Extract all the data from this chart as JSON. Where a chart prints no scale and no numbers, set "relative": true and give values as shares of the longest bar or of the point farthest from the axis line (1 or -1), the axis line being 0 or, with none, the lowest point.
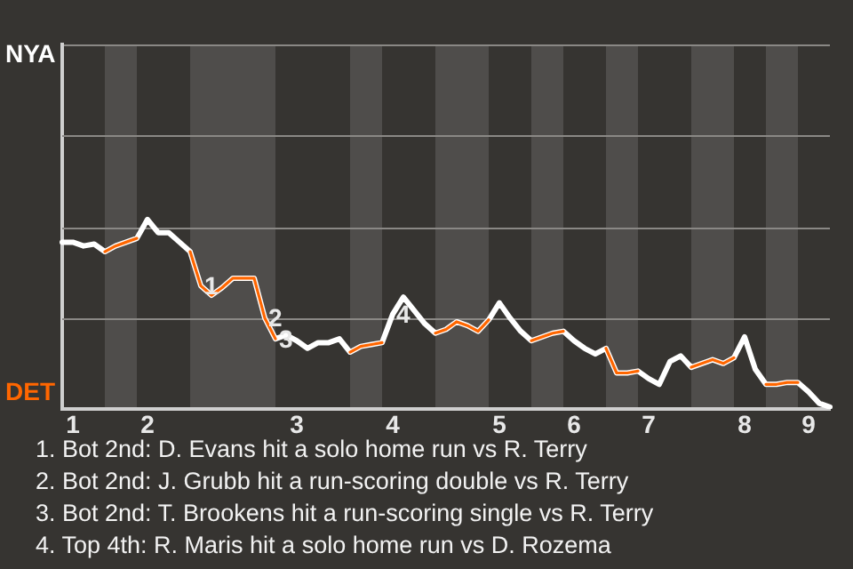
{
  "chart_data": {
    "type": "line",
    "relative": true,
    "categories": [
      null,
      "1",
      null,
      null,
      null,
      null,
      null,
      null,
      "2",
      null,
      null,
      null,
      null,
      null,
      null,
      null,
      null,
      null,
      null,
      null,
      null,
      null,
      "3",
      null,
      null,
      null,
      null,
      null,
      null,
      null,
      null,
      "4",
      null,
      null,
      null,
      null,
      null,
      null,
      null,
      null,
      null,
      "5",
      null,
      null,
      null,
      null,
      null,
      null,
      "6",
      null,
      null,
      null,
      null,
      null,
      null,
      "7",
      null,
      null,
      null,
      null,
      null,
      null,
      null,
      null,
      "8",
      null,
      null,
      null,
      null,
      null,
      "9",
      null,
      null
    ],
    "series": [
      {
        "name": "NYA",
        "color": "#ffffff",
        "values": [
          0.88,
          0.88,
          0.86,
          0.87,
          0.83,
          0.86,
          0.88,
          0.9,
          1,
          0.93,
          0.93,
          0.88,
          0.83,
          0.65,
          0.6,
          0.64,
          0.69,
          0.69,
          0.69,
          0.48,
          0.37,
          0.39,
          0.36,
          0.32,
          0.35,
          0.35,
          0.37,
          0.3,
          0.33,
          0.34,
          0.35,
          0.5,
          0.59,
          0.52,
          0.45,
          0.4,
          0.42,
          0.46,
          0.44,
          0.41,
          0.47,
          0.56,
          0.48,
          0.41,
          0.36,
          0.38,
          0.4,
          0.41,
          0.36,
          0.32,
          0.29,
          0.32,
          0.19,
          0.19,
          0.2,
          0.16,
          0.13,
          0.25,
          0.28,
          0.22,
          0.24,
          0.26,
          0.24,
          0.27,
          0.38,
          0.21,
          0.13,
          0.13,
          0.14,
          0.14,
          0.09,
          0.03,
          0.01
        ]
      },
      {
        "name": "DET",
        "color": "#ff6600",
        "values": [
          null,
          null,
          null,
          null,
          0.83,
          0.86,
          0.88,
          0.9,
          null,
          null,
          null,
          null,
          0.83,
          0.65,
          0.6,
          0.64,
          0.69,
          0.69,
          0.69,
          0.48,
          0.37,
          null,
          null,
          null,
          null,
          null,
          null,
          0.3,
          0.33,
          0.34,
          0.35,
          null,
          null,
          null,
          null,
          0.4,
          0.42,
          0.46,
          0.44,
          0.41,
          0.47,
          null,
          null,
          null,
          0.36,
          0.38,
          0.4,
          0.41,
          null,
          null,
          null,
          0.32,
          0.19,
          0.19,
          0.2,
          null,
          null,
          null,
          null,
          0.22,
          0.24,
          0.26,
          0.24,
          0.27,
          null,
          null,
          0.13,
          0.13,
          0.14,
          0.14,
          null,
          null,
          null
        ]
      }
    ],
    "ref_lines": [
      {
        "axis": "y",
        "value": 0.48,
        "color": "#8a8885"
      },
      {
        "axis": "y",
        "value": 0.96,
        "color": "#8a8885"
      },
      {
        "axis": "y",
        "value": 1.44,
        "color": "#8a8885"
      }
    ],
    "legend": false,
    "marker": "none",
    "line_style": "solid",
    "annotations": [
      {
        "text": "1",
        "y": 0.65
      },
      {
        "text": "2",
        "y": 0.48
      },
      {
        "text": "3",
        "y": 0.37
      },
      {
        "text": "4",
        "y": 0.5
      },
      "1. Bot 2nd: D. Evans hit a solo home run vs R. Terry",
      "2. Bot 2nd: J. Grubb hit a run-scoring double vs R. Terry",
      "3. Bot 2nd: T. Brookens hit a run-scoring single vs R. Terry",
      "4. Top 4th: R. Maris hit a solo home run vs D. Rozema"
    ]
  }
}
